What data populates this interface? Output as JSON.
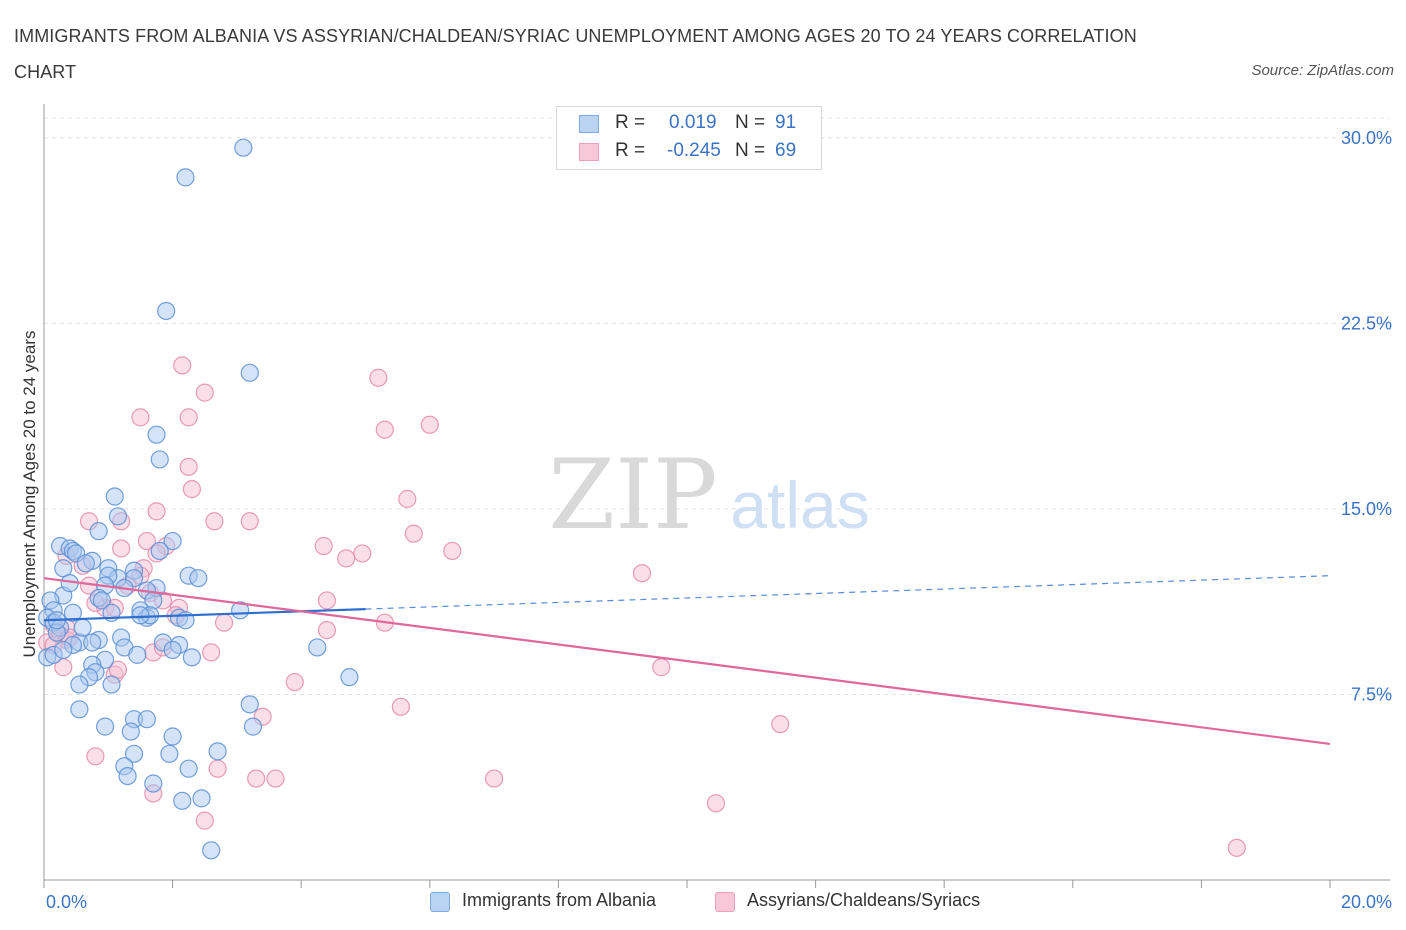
{
  "title": "IMMIGRANTS FROM ALBANIA VS ASSYRIAN/CHALDEAN/SYRIAC UNEMPLOYMENT AMONG AGES 20 TO 24 YEARS CORRELATION CHART",
  "source": "Source: ZipAtlas.com",
  "watermark": {
    "zip": "ZIP",
    "atlas": "atlas"
  },
  "legend": {
    "r_label": "R =",
    "n_label": "N =",
    "rows": [
      {
        "r": "0.019",
        "n": "91"
      },
      {
        "r": "-0.245",
        "n": "69"
      }
    ]
  },
  "colors": {
    "blue_fill": "#a9c8f0",
    "blue_stroke": "#5b8fd6",
    "blue_line": "#2f6fd0",
    "pink_fill": "#f6bfd2",
    "pink_stroke": "#e58aac",
    "pink_line": "#e0679a",
    "axis_tick_text": "#3a73c4",
    "grid": "#e3e3e3"
  },
  "chart_data": {
    "type": "scatter",
    "title": "IMMIGRANTS FROM ALBANIA VS ASSYRIAN/CHALDEAN/SYRIAC UNEMPLOYMENT AMONG AGES 20 TO 24 YEARS CORRELATION CHART",
    "xlabel": "",
    "ylabel": "Unemployment Among Ages 20 to 24 years",
    "xlim": [
      0,
      20
    ],
    "ylim": [
      0,
      30.8
    ],
    "x_tick_labels": [
      "0.0%",
      "20.0%"
    ],
    "y_ticks": [
      7.5,
      15.0,
      22.5,
      30.0
    ],
    "y_tick_labels": [
      "7.5%",
      "15.0%",
      "22.5%",
      "30.0%"
    ],
    "grid": true,
    "legend_position": "top-center",
    "series": [
      {
        "name": "Immigrants from Albania",
        "r": 0.019,
        "n": 91,
        "trend": {
          "x": [
            0,
            5
          ],
          "y": [
            10.5,
            10.95
          ],
          "dashed_to": [
            20,
            12.3
          ]
        },
        "points": [
          [
            3.1,
            29.6
          ],
          [
            2.2,
            28.4
          ],
          [
            1.9,
            23.0
          ],
          [
            3.2,
            20.5
          ],
          [
            1.75,
            18.0
          ],
          [
            1.8,
            17.0
          ],
          [
            1.1,
            15.5
          ],
          [
            1.15,
            14.7
          ],
          [
            0.85,
            14.1
          ],
          [
            0.25,
            13.5
          ],
          [
            0.4,
            13.4
          ],
          [
            0.45,
            13.3
          ],
          [
            0.5,
            13.2
          ],
          [
            0.75,
            12.9
          ],
          [
            2.0,
            13.7
          ],
          [
            1.8,
            13.3
          ],
          [
            0.3,
            12.6
          ],
          [
            0.65,
            12.8
          ],
          [
            1.0,
            12.6
          ],
          [
            1.15,
            12.2
          ],
          [
            1.0,
            12.3
          ],
          [
            0.95,
            11.9
          ],
          [
            1.4,
            12.5
          ],
          [
            1.4,
            12.2
          ],
          [
            1.75,
            11.8
          ],
          [
            2.25,
            12.3
          ],
          [
            2.4,
            12.2
          ],
          [
            1.6,
            11.7
          ],
          [
            1.25,
            11.8
          ],
          [
            0.3,
            11.5
          ],
          [
            0.85,
            11.4
          ],
          [
            0.9,
            11.3
          ],
          [
            1.7,
            11.3
          ],
          [
            0.1,
            11.3
          ],
          [
            0.15,
            10.9
          ],
          [
            0.45,
            10.8
          ],
          [
            1.05,
            10.8
          ],
          [
            1.5,
            10.9
          ],
          [
            1.6,
            10.6
          ],
          [
            1.65,
            10.7
          ],
          [
            2.1,
            10.6
          ],
          [
            3.05,
            10.9
          ],
          [
            0.05,
            10.6
          ],
          [
            0.15,
            10.4
          ],
          [
            0.25,
            10.2
          ],
          [
            0.2,
            10.0
          ],
          [
            0.85,
            9.7
          ],
          [
            1.2,
            9.8
          ],
          [
            0.55,
            9.6
          ],
          [
            0.75,
            9.6
          ],
          [
            0.45,
            9.5
          ],
          [
            1.25,
            9.4
          ],
          [
            1.85,
            9.6
          ],
          [
            2.1,
            9.5
          ],
          [
            2.0,
            9.3
          ],
          [
            2.3,
            9.0
          ],
          [
            1.45,
            9.1
          ],
          [
            0.05,
            9.0
          ],
          [
            0.15,
            9.1
          ],
          [
            0.95,
            8.9
          ],
          [
            0.75,
            8.7
          ],
          [
            0.8,
            8.4
          ],
          [
            0.7,
            8.2
          ],
          [
            0.55,
            7.9
          ],
          [
            1.05,
            7.9
          ],
          [
            4.75,
            8.2
          ],
          [
            4.25,
            9.4
          ],
          [
            3.2,
            7.1
          ],
          [
            3.25,
            6.2
          ],
          [
            0.55,
            6.9
          ],
          [
            0.95,
            6.2
          ],
          [
            1.4,
            6.5
          ],
          [
            1.6,
            6.5
          ],
          [
            2.0,
            5.8
          ],
          [
            1.35,
            6.0
          ],
          [
            1.4,
            5.1
          ],
          [
            1.95,
            5.1
          ],
          [
            2.7,
            5.2
          ],
          [
            1.25,
            4.6
          ],
          [
            2.25,
            4.5
          ],
          [
            1.3,
            4.2
          ],
          [
            1.7,
            3.9
          ],
          [
            2.15,
            3.2
          ],
          [
            2.45,
            3.3
          ],
          [
            2.6,
            1.2
          ],
          [
            0.2,
            10.5
          ],
          [
            0.3,
            9.3
          ],
          [
            0.6,
            10.2
          ],
          [
            1.5,
            10.7
          ],
          [
            2.2,
            10.5
          ],
          [
            0.4,
            12.0
          ]
        ]
      },
      {
        "name": "Assyrians/Chaldeans/Syriacs",
        "r": -0.245,
        "n": 69,
        "trend": {
          "x": [
            0,
            20
          ],
          "y": [
            12.2,
            5.5
          ]
        },
        "points": [
          [
            2.15,
            20.8
          ],
          [
            5.2,
            20.3
          ],
          [
            2.5,
            19.7
          ],
          [
            1.5,
            18.7
          ],
          [
            2.25,
            18.7
          ],
          [
            6.0,
            18.4
          ],
          [
            5.3,
            18.2
          ],
          [
            2.25,
            16.7
          ],
          [
            2.3,
            15.8
          ],
          [
            5.65,
            15.4
          ],
          [
            1.75,
            14.9
          ],
          [
            1.2,
            14.5
          ],
          [
            0.7,
            14.5
          ],
          [
            2.65,
            14.5
          ],
          [
            3.2,
            14.5
          ],
          [
            5.75,
            14.0
          ],
          [
            1.6,
            13.7
          ],
          [
            4.35,
            13.5
          ],
          [
            6.35,
            13.3
          ],
          [
            1.9,
            13.5
          ],
          [
            4.7,
            13.0
          ],
          [
            4.95,
            13.2
          ],
          [
            1.2,
            13.4
          ],
          [
            1.75,
            13.2
          ],
          [
            0.35,
            13.1
          ],
          [
            0.6,
            12.7
          ],
          [
            0.95,
            11.0
          ],
          [
            1.55,
            12.6
          ],
          [
            1.5,
            12.3
          ],
          [
            1.3,
            11.9
          ],
          [
            1.65,
            11.6
          ],
          [
            0.7,
            11.9
          ],
          [
            1.85,
            11.3
          ],
          [
            4.4,
            11.3
          ],
          [
            0.8,
            11.2
          ],
          [
            1.1,
            11.0
          ],
          [
            2.1,
            11.0
          ],
          [
            2.05,
            10.7
          ],
          [
            5.3,
            10.4
          ],
          [
            2.8,
            10.4
          ],
          [
            0.15,
            10.3
          ],
          [
            0.35,
            10.2
          ],
          [
            0.25,
            9.9
          ],
          [
            0.35,
            9.7
          ],
          [
            0.05,
            9.6
          ],
          [
            0.4,
            9.8
          ],
          [
            0.15,
            9.5
          ],
          [
            1.7,
            9.2
          ],
          [
            1.85,
            9.4
          ],
          [
            2.6,
            9.2
          ],
          [
            4.4,
            10.1
          ],
          [
            9.3,
            12.4
          ],
          [
            9.6,
            8.6
          ],
          [
            0.3,
            8.6
          ],
          [
            1.1,
            8.3
          ],
          [
            1.15,
            8.5
          ],
          [
            3.9,
            8.0
          ],
          [
            5.55,
            7.0
          ],
          [
            11.45,
            6.3
          ],
          [
            0.8,
            5.0
          ],
          [
            2.7,
            4.5
          ],
          [
            3.4,
            6.6
          ],
          [
            3.3,
            4.1
          ],
          [
            3.6,
            4.1
          ],
          [
            7.0,
            4.1
          ],
          [
            1.7,
            3.5
          ],
          [
            10.45,
            3.1
          ],
          [
            2.5,
            2.4
          ],
          [
            18.55,
            1.3
          ]
        ]
      }
    ]
  }
}
